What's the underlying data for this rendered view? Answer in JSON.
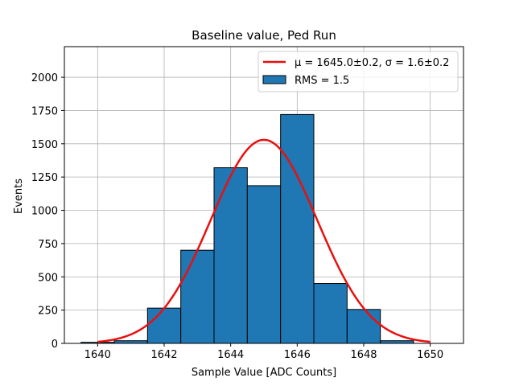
{
  "chart_data": {
    "type": "bar",
    "title": "Baseline value, Ped Run",
    "xlabel": "Sample Value [ADC Counts]",
    "ylabel": "Events",
    "xlim": [
      1639.0,
      1651.0
    ],
    "ylim": [
      0,
      2230
    ],
    "grid": true,
    "xticks": [
      1640,
      1642,
      1644,
      1646,
      1648,
      1650
    ],
    "yticks": [
      0,
      250,
      500,
      750,
      1000,
      1250,
      1500,
      1750,
      2000
    ],
    "bins": [
      {
        "left": 1639.5,
        "right": 1640.5,
        "value": 8
      },
      {
        "left": 1640.5,
        "right": 1641.5,
        "value": 20
      },
      {
        "left": 1641.5,
        "right": 1642.5,
        "value": 265
      },
      {
        "left": 1642.5,
        "right": 1643.5,
        "value": 700
      },
      {
        "left": 1643.5,
        "right": 1644.5,
        "value": 1320
      },
      {
        "left": 1644.5,
        "right": 1645.5,
        "value": 1185
      },
      {
        "left": 1645.5,
        "right": 1646.5,
        "value": 1720
      },
      {
        "left": 1646.5,
        "right": 1647.5,
        "value": 450
      },
      {
        "left": 1647.5,
        "right": 1648.5,
        "value": 255
      },
      {
        "left": 1648.5,
        "right": 1649.5,
        "value": 20
      }
    ],
    "fit": {
      "mu": 1645.0,
      "sigma": 1.6,
      "amplitude": 1530,
      "x_range": [
        1640,
        1650
      ]
    },
    "legend": {
      "position": "top-right",
      "fit_label": "μ = 1645.0±0.2, σ = 1.6±0.2",
      "hist_label": "RMS = 1.5"
    },
    "colors": {
      "bar": "#1f77b4",
      "fit": "#e8100e",
      "grid": "#b0b0b0"
    }
  }
}
